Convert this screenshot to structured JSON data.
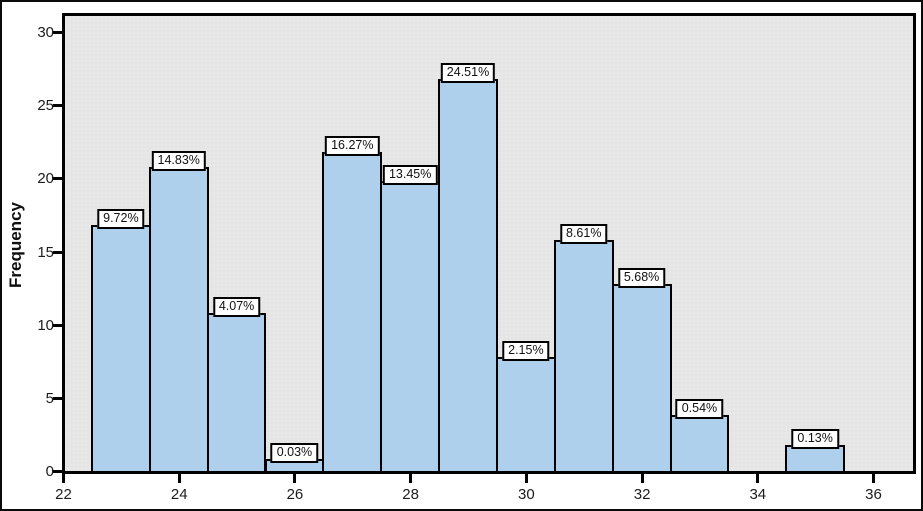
{
  "chart_data": {
    "type": "bar",
    "subtype": "histogram",
    "title": "",
    "xlabel": "",
    "ylabel": "Frequency",
    "xlim": [
      22,
      36.76
    ],
    "ylim": [
      0,
      31.5
    ],
    "grid": false,
    "legend": "none",
    "x_ticks": [
      22,
      24,
      26,
      28,
      30,
      32,
      34,
      36
    ],
    "y_ticks": [
      0,
      5,
      10,
      15,
      20,
      25,
      30
    ],
    "bars": [
      {
        "x_start": 22.5,
        "x_end": 23.5,
        "frequency": 17,
        "percent_label": "9.72%"
      },
      {
        "x_start": 23.5,
        "x_end": 24.5,
        "frequency": 21,
        "percent_label": "14.83%"
      },
      {
        "x_start": 24.5,
        "x_end": 25.5,
        "frequency": 11,
        "percent_label": "4.07%"
      },
      {
        "x_start": 25.5,
        "x_end": 26.5,
        "frequency": 1,
        "percent_label": "0.03%"
      },
      {
        "x_start": 26.5,
        "x_end": 27.5,
        "frequency": 22,
        "percent_label": "16.27%"
      },
      {
        "x_start": 27.5,
        "x_end": 28.5,
        "frequency": 20,
        "percent_label": "13.45%"
      },
      {
        "x_start": 28.5,
        "x_end": 29.5,
        "frequency": 27,
        "percent_label": "24.51%"
      },
      {
        "x_start": 29.5,
        "x_end": 30.5,
        "frequency": 8,
        "percent_label": "2.15%"
      },
      {
        "x_start": 30.5,
        "x_end": 31.5,
        "frequency": 16,
        "percent_label": "8.61%"
      },
      {
        "x_start": 31.5,
        "x_end": 32.5,
        "frequency": 13,
        "percent_label": "5.68%"
      },
      {
        "x_start": 32.5,
        "x_end": 33.5,
        "frequency": 4,
        "percent_label": "0.54%"
      },
      {
        "x_start": 34.5,
        "x_end": 35.5,
        "frequency": 2,
        "percent_label": "0.13%"
      }
    ],
    "colors": {
      "bar_fill": "#aed0ec",
      "bar_border": "#000000",
      "plot_background": "#e7e7e7",
      "frame": "#000000",
      "label_box_background": "#ffffff",
      "text": "#1c1c1c",
      "outer_background": "#ffffff"
    }
  }
}
